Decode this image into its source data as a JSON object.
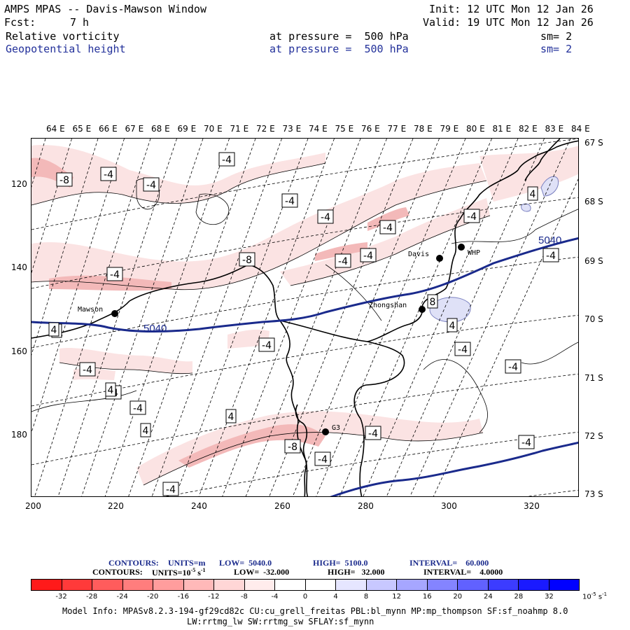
{
  "header": {
    "title": "AMPS MPAS -- Davis-Mawson Window",
    "init": "Init: 12 UTC Mon 12 Jan 26",
    "fcst_label": "Fcst:",
    "fcst_value": "7 h",
    "valid": "Valid: 19 UTC Mon 12 Jan 26",
    "field1": {
      "name": "Relative vorticity",
      "level": "at pressure =  500 hPa",
      "sm": "sm= 2"
    },
    "field2": {
      "name": "Geopotential height",
      "level": "at pressure =  500 hPa",
      "sm": "sm= 2"
    }
  },
  "map": {
    "lon_labels": [
      "64 E",
      "65 E",
      "66 E",
      "67 E",
      "68 E",
      "69 E",
      "70 E",
      "71 E",
      "72 E",
      "73 E",
      "74 E",
      "75 E",
      "76 E",
      "77 E",
      "78 E",
      "79 E",
      "80 E",
      "81 E",
      "82 E",
      "83 E",
      "84 E"
    ],
    "lat_labels": [
      "67 S",
      "68 S",
      "69 S",
      "70 S",
      "71 S",
      "72 S",
      "73 S"
    ],
    "y_ticks": [
      "120",
      "140",
      "160",
      "180"
    ],
    "x_ticks": [
      "200",
      "220",
      "240",
      "260",
      "280",
      "300",
      "320"
    ],
    "stations": [
      {
        "name": "Mawson"
      },
      {
        "name": "Davis"
      },
      {
        "name": "WHP"
      },
      {
        "name": "Zhongshan"
      },
      {
        "name": "G3"
      }
    ],
    "height_labels": [
      "5040",
      "5040"
    ],
    "vorticity_labels": [
      "-8",
      "-4",
      "-4",
      "-4",
      "-4",
      "-4",
      "-4",
      "-8",
      "-4",
      "-4",
      "-4",
      "-4",
      "-4",
      "-4",
      "-4",
      "-4",
      "4",
      "8",
      "4",
      "-4",
      "-4",
      "4",
      "-4",
      "4",
      "4",
      "-4",
      "-4",
      "-8",
      "-4",
      "-4",
      "4",
      "4"
    ],
    "colors": {
      "height_contour": "#1a2a8c",
      "coast": "#000000",
      "neg_fill_light": "#f9dcdc",
      "neg_fill_mid": "#f2b8b8",
      "pos_fill": "#d9dcf5"
    }
  },
  "legend": {
    "line1_label": "CONTOURS:",
    "line1_units": "UNITS=m",
    "line1_low": "LOW=  5040.0",
    "line1_high": "HIGH=  5100.0",
    "line1_interval": "INTERVAL=    60.000",
    "line2_label": "CONTOURS:",
    "line2_units": "UNITS=10",
    "line2_exp": "-5",
    "line2_units_end": " s",
    "line2_units_exp": "-1",
    "line2_low": "LOW=  -32.000",
    "line2_high": "HIGH=   32.000",
    "line2_interval": "INTERVAL=    4.0000"
  },
  "colorbar": {
    "colors": [
      "#ff1a1a",
      "#ff3a3a",
      "#ff5c5c",
      "#ff7d7d",
      "#ff9d9d",
      "#ffb9b9",
      "#ffd6d6",
      "#ffecec",
      "#ffffff",
      "#ffffff",
      "#e6e6ff",
      "#c8c8ff",
      "#a6a6ff",
      "#8484ff",
      "#6161ff",
      "#3c3cff",
      "#1a1aff",
      "#0000ff"
    ],
    "labels": [
      "-32",
      "-28",
      "-24",
      "-20",
      "-16",
      "-12",
      "-8",
      "-4",
      "0",
      "4",
      "8",
      "12",
      "16",
      "20",
      "24",
      "28",
      "32"
    ],
    "units_prefix": "10",
    "units_exp": "-5",
    "units_suffix": " s",
    "units_suffix_exp": "-1"
  },
  "footer": {
    "line1": "Model Info: MPASv8.2.3-194-gf29cd82c CU:cu_grell_freitas PBL:bl_mynn MP:mp_thompson SF:sf_noahmp 8.0",
    "line2": "LW:rrtmg_lw SW:rrtmg_sw SFLAY:sf_mynn"
  }
}
